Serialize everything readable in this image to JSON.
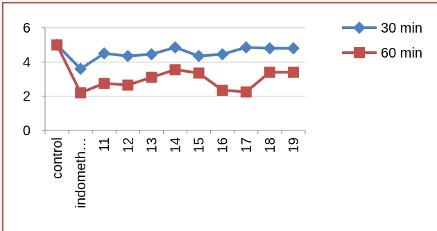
{
  "chart_data": {
    "type": "line",
    "categories": [
      "control",
      "indometh…",
      "11",
      "12",
      "13",
      "14",
      "15",
      "16",
      "17",
      "18",
      "19"
    ],
    "series": [
      {
        "name": "30 min",
        "color": "#4f81bd",
        "marker": "diamond",
        "values": [
          5.0,
          3.6,
          4.5,
          4.35,
          4.45,
          4.85,
          4.35,
          4.45,
          4.85,
          4.8,
          4.8
        ]
      },
      {
        "name": "60 min",
        "color": "#c0504d",
        "marker": "square",
        "values": [
          5.0,
          2.2,
          2.75,
          2.65,
          3.1,
          3.55,
          3.35,
          2.35,
          2.25,
          3.4,
          3.4
        ]
      }
    ],
    "ylim": [
      0,
      6
    ],
    "yticks": [
      "0",
      "2",
      "4",
      "6"
    ],
    "grid": true,
    "legend_position": "right",
    "title": "",
    "xlabel": "",
    "ylabel": ""
  }
}
